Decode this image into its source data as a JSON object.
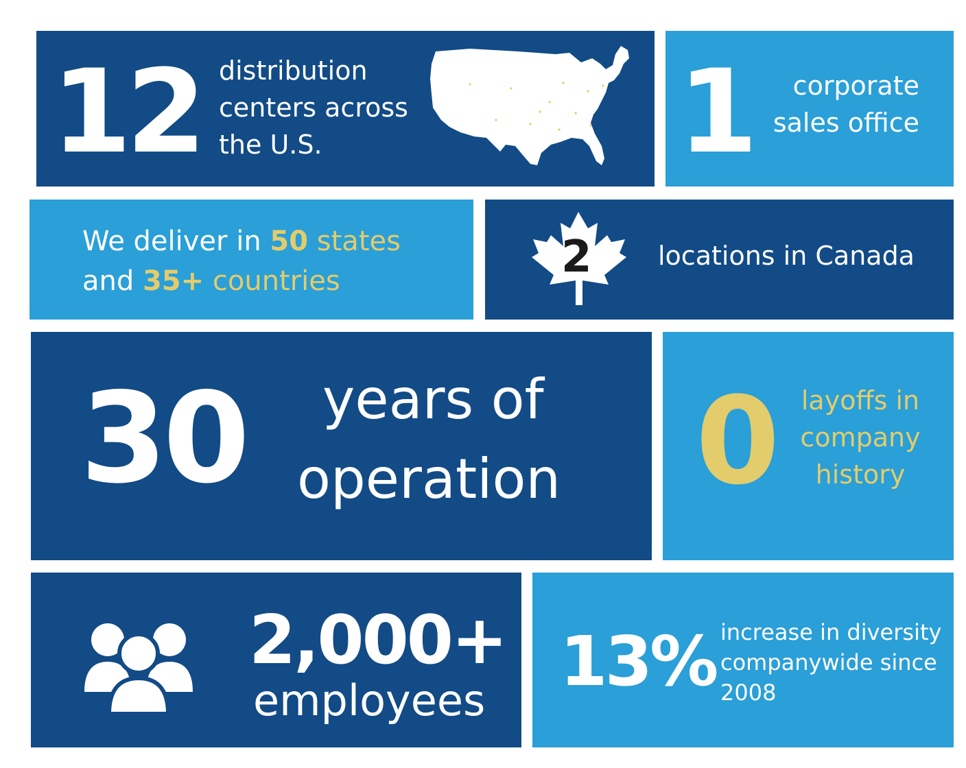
{
  "distribution": {
    "number": "12",
    "line1": "distribution",
    "line2": "centers across",
    "line3": "the U.S."
  },
  "corporate": {
    "number": "1",
    "line1": "corporate",
    "line2": "sales office"
  },
  "deliver": {
    "prefix": "We deliver in ",
    "states_num": "50",
    "states_word": " states",
    "and": "and ",
    "countries_num": "35+",
    "countries_word": " countries"
  },
  "canada": {
    "number": "2",
    "text": "locations in Canada"
  },
  "operation": {
    "number": "30",
    "line1": "years of",
    "line2": "operation"
  },
  "layoffs": {
    "number": "0",
    "line1": "layoffs in",
    "line2": "company",
    "line3": "history"
  },
  "employees": {
    "number": "2,000+",
    "label": "employees"
  },
  "diversity": {
    "number": "13%",
    "line1": "increase in diversity",
    "line2": "companywide since",
    "line3": "2008"
  },
  "colors": {
    "dark_blue": "#124b86",
    "light_blue": "#2a9fd8",
    "gold": "#e3cc6c",
    "white": "#ffffff"
  },
  "icons": [
    "us-map-icon",
    "maple-leaf-icon",
    "people-group-icon"
  ]
}
